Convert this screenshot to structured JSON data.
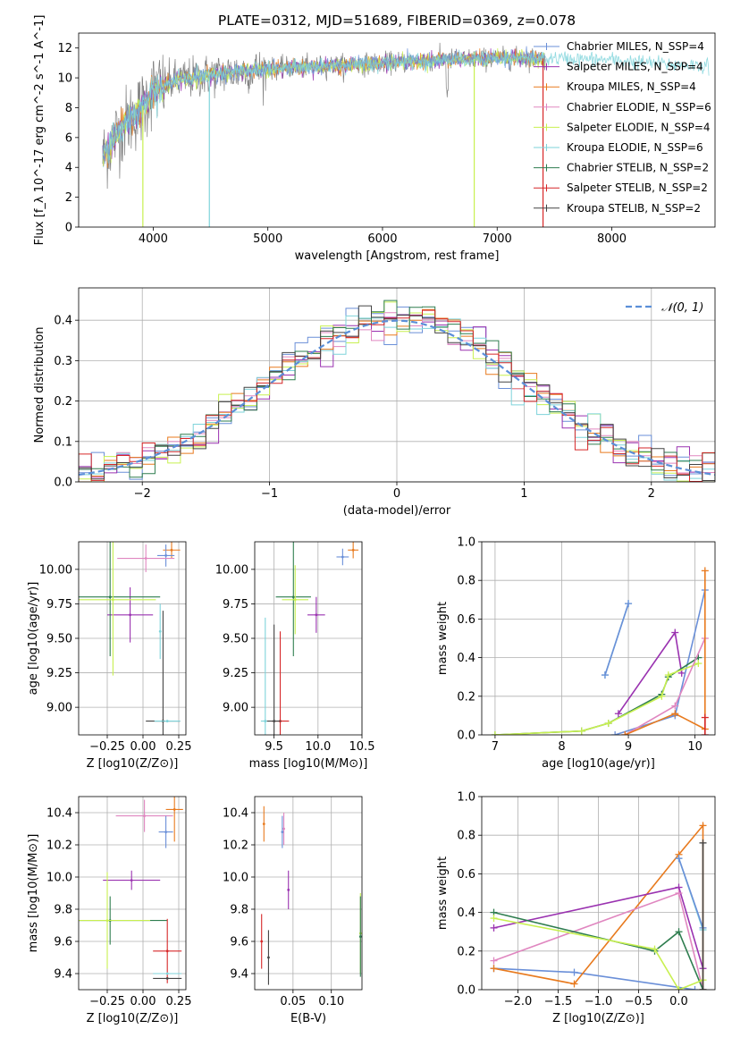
{
  "colors": {
    "chabrier_miles": "#6a8fd8",
    "salpeter_miles": "#9a32b0",
    "kroupa_miles": "#e87a1e",
    "chabrier_elodie": "#e087c0",
    "salpeter_elodie": "#c8f050",
    "kroupa_elodie": "#7ed3da",
    "chabrier_stelib": "#2e7d4f",
    "salpeter_stelib": "#d62728",
    "kroupa_stelib": "#444444",
    "data": "#808080",
    "grid": "#b0b0b0"
  },
  "chart_data": [
    {
      "id": "spectrum",
      "type": "line",
      "title": "PLATE=0312, MJD=51689, FIBERID=0369, z=0.078",
      "xlabel": "wavelength [Angstrom, rest frame]",
      "ylabel": "Flux [f_λ 10^-17 erg cm^-2 s^-1 A^-1]",
      "xlim": [
        3350,
        8900
      ],
      "ylim": [
        0,
        13
      ],
      "xticks": [
        4000,
        5000,
        6000,
        7000,
        8000
      ],
      "yticks": [
        0,
        2,
        4,
        6,
        8,
        10,
        12
      ],
      "legend": "upper right",
      "legend_entries": [
        {
          "key": "chabrier_miles",
          "label": "Chabrier MILES, N_SSP=4"
        },
        {
          "key": "salpeter_miles",
          "label": "Salpeter MILES, N_SSP=4"
        },
        {
          "key": "kroupa_miles",
          "label": "Kroupa MILES, N_SSP=4"
        },
        {
          "key": "chabrier_elodie",
          "label": "Chabrier ELODIE, N_SSP=6"
        },
        {
          "key": "salpeter_elodie",
          "label": "Salpeter ELODIE, N_SSP=4"
        },
        {
          "key": "kroupa_elodie",
          "label": "Kroupa ELODIE, N_SSP=6"
        },
        {
          "key": "chabrier_stelib",
          "label": "Chabrier STELIB, N_SSP=2"
        },
        {
          "key": "salpeter_stelib",
          "label": "Salpeter STELIB, N_SSP=2"
        },
        {
          "key": "kroupa_stelib",
          "label": "Kroupa STELIB, N_SSP=2"
        }
      ],
      "continuum": [
        [
          3550,
          4.5
        ],
        [
          3700,
          6.5
        ],
        [
          3900,
          8.0
        ],
        [
          4000,
          9.2
        ],
        [
          4200,
          9.8
        ],
        [
          4500,
          10.2
        ],
        [
          5000,
          10.6
        ],
        [
          5500,
          10.8
        ],
        [
          6000,
          11.0
        ],
        [
          6500,
          11.2
        ],
        [
          7000,
          11.3
        ],
        [
          7500,
          11.3
        ],
        [
          8000,
          11.2
        ],
        [
          8500,
          10.9
        ],
        [
          8850,
          10.8
        ]
      ],
      "drops": [
        {
          "x": 3910,
          "key": "salpeter_elodie"
        },
        {
          "x": 4490,
          "key": "kroupa_elodie"
        },
        {
          "x": 6800,
          "key": "salpeter_elodie"
        },
        {
          "x": 7400,
          "key": "salpeter_stelib"
        }
      ]
    },
    {
      "id": "residuals",
      "type": "line",
      "xlabel": "(data-model)/error",
      "ylabel": "Normed distribution",
      "xlim": [
        -2.5,
        2.5
      ],
      "ylim": [
        0,
        0.48
      ],
      "xticks": [
        -2,
        -1,
        0,
        1,
        2
      ],
      "yticks": [
        0.0,
        0.1,
        0.2,
        0.3,
        0.4
      ],
      "legend": "upper right",
      "legend_label": "𝒩(0, 1)",
      "normal_color": "#5b8fd8",
      "bin_width": 0.1
    },
    {
      "id": "age_vs_Z",
      "type": "scatter",
      "xlabel": "Z [log10(Z/Z⊙)]",
      "ylabel": "age [log10(age/yr)]",
      "xlim": [
        -0.45,
        0.3
      ],
      "ylim": [
        8.8,
        10.2
      ],
      "xticks": [
        -0.25,
        0.0,
        0.25
      ],
      "yticks": [
        9.0,
        9.25,
        9.5,
        9.75,
        10.0
      ],
      "points": [
        {
          "key": "kroupa_miles",
          "x": 0.2,
          "y": 10.14,
          "xerr": 0.06,
          "yerr": 0.06
        },
        {
          "key": "chabrier_miles",
          "x": 0.16,
          "y": 10.1,
          "xerr": 0.06,
          "yerr": 0.08
        },
        {
          "key": "chabrier_elodie",
          "x": 0.02,
          "y": 10.08,
          "xerr": 0.2,
          "yerr": 0.1
        },
        {
          "key": "salpeter_miles",
          "x": -0.09,
          "y": 9.67,
          "xerr": 0.16,
          "yerr": 0.2
        },
        {
          "key": "chabrier_stelib",
          "x": -0.23,
          "y": 9.8,
          "xerr": 0.35,
          "yerr": 0.43
        },
        {
          "key": "salpeter_elodie",
          "x": -0.21,
          "y": 9.78,
          "xerr": 0.3,
          "yerr": 0.55
        },
        {
          "key": "kroupa_elodie",
          "x": 0.12,
          "y": 9.55,
          "xerr": 0.0,
          "yerr": 0.2
        },
        {
          "key": "kroupa_stelib",
          "x": 0.14,
          "y": 8.9,
          "xerr": 0.12,
          "yerr": 0.8
        },
        {
          "key": "kroupa_elodie",
          "x": 0.17,
          "y": 8.9,
          "xerr": 0.09,
          "yerr": 0.0
        }
      ]
    },
    {
      "id": "age_vs_mass",
      "type": "scatter",
      "xlabel": "mass [log10(M/M⊙)]",
      "xlim": [
        9.28,
        10.5
      ],
      "ylim": [
        8.8,
        10.2
      ],
      "xticks": [
        9.5,
        10.0,
        10.5
      ],
      "yticks": [
        9.0,
        9.25,
        9.5,
        9.75,
        10.0
      ],
      "points": [
        {
          "key": "kroupa_miles",
          "x": 10.4,
          "y": 10.14,
          "xerr": 0.06,
          "yerr": 0.06
        },
        {
          "key": "chabrier_miles",
          "x": 10.28,
          "y": 10.09,
          "xerr": 0.07,
          "yerr": 0.06
        },
        {
          "key": "salpeter_miles",
          "x": 9.98,
          "y": 9.67,
          "xerr": 0.1,
          "yerr": 0.13
        },
        {
          "key": "chabrier_stelib",
          "x": 9.72,
          "y": 9.8,
          "xerr": 0.2,
          "yerr": 0.43
        },
        {
          "key": "salpeter_elodie",
          "x": 9.74,
          "y": 9.78,
          "xerr": 0.15,
          "yerr": 0.25
        },
        {
          "key": "kroupa_elodie",
          "x": 9.4,
          "y": 8.9,
          "xerr": 0.05,
          "yerr": 0.75
        },
        {
          "key": "salpeter_stelib",
          "x": 9.57,
          "y": 8.9,
          "xerr": 0.1,
          "yerr": 0.65
        },
        {
          "key": "kroupa_stelib",
          "x": 9.5,
          "y": 8.9,
          "xerr": 0.08,
          "yerr": 0.7
        }
      ]
    },
    {
      "id": "weight_vs_age",
      "type": "line",
      "xlabel": "age [log10(age/yr)]",
      "ylabel": "mass weight",
      "xlim": [
        6.8,
        10.3
      ],
      "ylim": [
        0,
        1.0
      ],
      "xticks": [
        7,
        8,
        9,
        10
      ],
      "yticks": [
        0.0,
        0.2,
        0.4,
        0.6,
        0.8,
        1.0
      ],
      "series": [
        {
          "key": "kroupa_elodie",
          "x": [
            8.65,
            9.0
          ],
          "y": [
            0.31,
            0.68
          ]
        },
        {
          "key": "chabrier_miles",
          "x": [
            8.65,
            9.0
          ],
          "y": [
            0.31,
            0.68
          ]
        },
        {
          "key": "salpeter_miles",
          "x": [
            8.85,
            9.7,
            9.8
          ],
          "y": [
            0.11,
            0.53,
            0.32
          ]
        },
        {
          "key": "chabrier_miles",
          "x": [
            8.8,
            9.7,
            10.15
          ],
          "y": [
            0.0,
            0.1,
            0.75
          ]
        },
        {
          "key": "chabrier_stelib",
          "x": [
            7.0,
            8.3,
            8.7,
            9.5,
            9.6,
            10.05
          ],
          "y": [
            0.0,
            0.02,
            0.06,
            0.21,
            0.3,
            0.4
          ]
        },
        {
          "key": "salpeter_elodie",
          "x": [
            7.0,
            8.3,
            8.7,
            9.5,
            9.6,
            10.05
          ],
          "y": [
            0.0,
            0.02,
            0.06,
            0.2,
            0.31,
            0.37
          ]
        },
        {
          "key": "chabrier_elodie",
          "x": [
            8.95,
            9.7,
            10.15
          ],
          "y": [
            0.0,
            0.15,
            0.5
          ]
        },
        {
          "key": "kroupa_miles",
          "x": [
            8.95,
            9.7,
            10.15,
            10.15
          ],
          "y": [
            0.0,
            0.11,
            0.03,
            0.85
          ]
        },
        {
          "key": "salpeter_stelib",
          "x": [
            10.15,
            10.15
          ],
          "y": [
            0.0,
            0.09
          ]
        }
      ]
    },
    {
      "id": "mass_vs_Z",
      "type": "scatter",
      "xlabel": "Z [log10(Z/Z⊙)]",
      "ylabel": "mass [log10(M/M⊙)]",
      "xlim": [
        -0.45,
        0.3
      ],
      "ylim": [
        9.3,
        10.5
      ],
      "xticks": [
        -0.25,
        0.0,
        0.25
      ],
      "yticks": [
        9.4,
        9.6,
        9.8,
        10.0,
        10.2,
        10.4
      ],
      "points": [
        {
          "key": "kroupa_miles",
          "x": 0.22,
          "y": 10.42,
          "xerr": 0.06,
          "yerr": 0.2
        },
        {
          "key": "chabrier_elodie",
          "x": 0.01,
          "y": 10.38,
          "xerr": 0.2,
          "yerr": 0.1
        },
        {
          "key": "chabrier_miles",
          "x": 0.16,
          "y": 10.28,
          "xerr": 0.05,
          "yerr": 0.1
        },
        {
          "key": "salpeter_miles",
          "x": -0.08,
          "y": 9.98,
          "xerr": 0.2,
          "yerr": 0.06
        },
        {
          "key": "chabrier_stelib",
          "x": -0.23,
          "y": 9.73,
          "xerr": 0.4,
          "yerr": 0.15
        },
        {
          "key": "salpeter_elodie",
          "x": -0.25,
          "y": 9.73,
          "xerr": 0.3,
          "yerr": 0.3
        },
        {
          "key": "salpeter_stelib",
          "x": 0.17,
          "y": 9.54,
          "xerr": 0.1,
          "yerr": 0.2
        },
        {
          "key": "kroupa_elodie",
          "x": 0.17,
          "y": 9.4,
          "xerr": 0.1,
          "yerr": 0.0
        },
        {
          "key": "kroupa_stelib",
          "x": 0.17,
          "y": 9.37,
          "xerr": 0.1,
          "yerr": 0.0
        }
      ]
    },
    {
      "id": "mass_vs_ebv",
      "type": "scatter",
      "xlabel": "E(B-V)",
      "xlim": [
        0.0,
        0.14
      ],
      "ylim": [
        9.3,
        10.5
      ],
      "xticks": [
        0.05,
        0.1
      ],
      "yticks": [
        9.4,
        9.6,
        9.8,
        10.0,
        10.2,
        10.4
      ],
      "points": [
        {
          "key": "kroupa_miles",
          "x": 0.012,
          "y": 10.33,
          "yerr": 0.11
        },
        {
          "key": "chabrier_elodie",
          "x": 0.038,
          "y": 10.3,
          "yerr": 0.1
        },
        {
          "key": "chabrier_miles",
          "x": 0.036,
          "y": 10.28,
          "yerr": 0.1
        },
        {
          "key": "salpeter_miles",
          "x": 0.044,
          "y": 9.92,
          "yerr": 0.12
        },
        {
          "key": "salpeter_stelib",
          "x": 0.009,
          "y": 9.6,
          "yerr": 0.17
        },
        {
          "key": "kroupa_stelib",
          "x": 0.018,
          "y": 9.5,
          "yerr": 0.17
        },
        {
          "key": "salpeter_elodie",
          "x": 0.138,
          "y": 9.65,
          "yerr": 0.25
        },
        {
          "key": "chabrier_stelib",
          "x": 0.138,
          "y": 9.63,
          "yerr": 0.25
        }
      ]
    },
    {
      "id": "weight_vs_Z",
      "type": "line",
      "xlabel": "Z [log10(Z/Z⊙)]",
      "ylabel": "mass weight",
      "xlim": [
        -2.45,
        0.45
      ],
      "ylim": [
        0,
        1.0
      ],
      "xticks": [
        -2.0,
        -1.5,
        -1.0,
        -0.5,
        0.0
      ],
      "yticks": [
        0.0,
        0.2,
        0.4,
        0.6,
        0.8,
        1.0
      ],
      "series": [
        {
          "key": "chabrier_miles",
          "x": [
            -2.3,
            -1.3,
            0.2
          ],
          "y": [
            0.11,
            0.09,
            0.0
          ]
        },
        {
          "key": "kroupa_miles",
          "x": [
            -2.3,
            -1.3,
            0.0,
            0.3,
            0.3
          ],
          "y": [
            0.11,
            0.03,
            0.7,
            0.85,
            0.0
          ]
        },
        {
          "key": "salpeter_miles",
          "x": [
            -2.3,
            0.0,
            0.3
          ],
          "y": [
            0.32,
            0.53,
            0.11
          ]
        },
        {
          "key": "chabrier_elodie",
          "x": [
            -2.3,
            0.0,
            0.3
          ],
          "y": [
            0.15,
            0.5,
            0.0
          ]
        },
        {
          "key": "chabrier_stelib",
          "x": [
            -2.3,
            -0.3,
            0.0,
            0.3
          ],
          "y": [
            0.4,
            0.2,
            0.3,
            0.0
          ]
        },
        {
          "key": "salpeter_elodie",
          "x": [
            -2.3,
            -0.3,
            0.0,
            0.3
          ],
          "y": [
            0.37,
            0.21,
            0.0,
            0.05
          ]
        },
        {
          "key": "kroupa_elodie",
          "x": [
            0.0,
            0.3
          ],
          "y": [
            0.68,
            0.31
          ]
        },
        {
          "key": "chabrier_miles",
          "x": [
            0.0,
            0.3
          ],
          "y": [
            0.68,
            0.32
          ]
        },
        {
          "key": "kroupa_stelib",
          "x": [
            0.3,
            0.3
          ],
          "y": [
            0.76,
            0.0
          ]
        }
      ]
    }
  ]
}
